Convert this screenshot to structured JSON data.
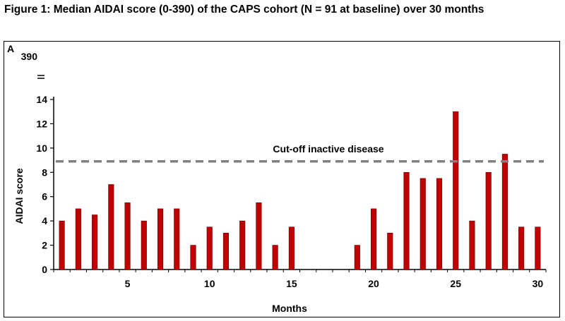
{
  "figure_title": "Figure 1: Median AIDAI score (0-390) of the CAPS cohort (N = 91 at baseline) over 30 months",
  "panel_label": "A",
  "chart_data": {
    "type": "bar",
    "title": "Median AIDAI score (0-390) of the CAPS cohort (N = 91 at baseline) over 30 months",
    "xlabel": "Months",
    "ylabel": "AIDAI score",
    "categories": [
      1,
      2,
      3,
      4,
      5,
      6,
      7,
      8,
      9,
      10,
      11,
      12,
      13,
      14,
      15,
      16,
      17,
      18,
      19,
      20,
      21,
      22,
      23,
      24,
      25,
      26,
      27,
      28,
      29,
      30
    ],
    "values": [
      4,
      5,
      4.5,
      7,
      5.5,
      4,
      5,
      5,
      2,
      3.5,
      3,
      4,
      5.5,
      2,
      3.5,
      null,
      null,
      null,
      2,
      5,
      3,
      8,
      7.5,
      7.5,
      13,
      4,
      8,
      9.5,
      3.5,
      3.5
    ],
    "xticks": [
      5,
      10,
      15,
      20,
      25,
      30
    ],
    "yticks": [
      0,
      2,
      4,
      6,
      8,
      10,
      12,
      14
    ],
    "ylim": [
      0,
      14
    ],
    "ymax_label": "390",
    "cutoff": {
      "value": 8.9,
      "label": "Cut-off inactive disease"
    },
    "bar_color": "#c00000",
    "cutoff_color": "#808080",
    "grid": false
  }
}
